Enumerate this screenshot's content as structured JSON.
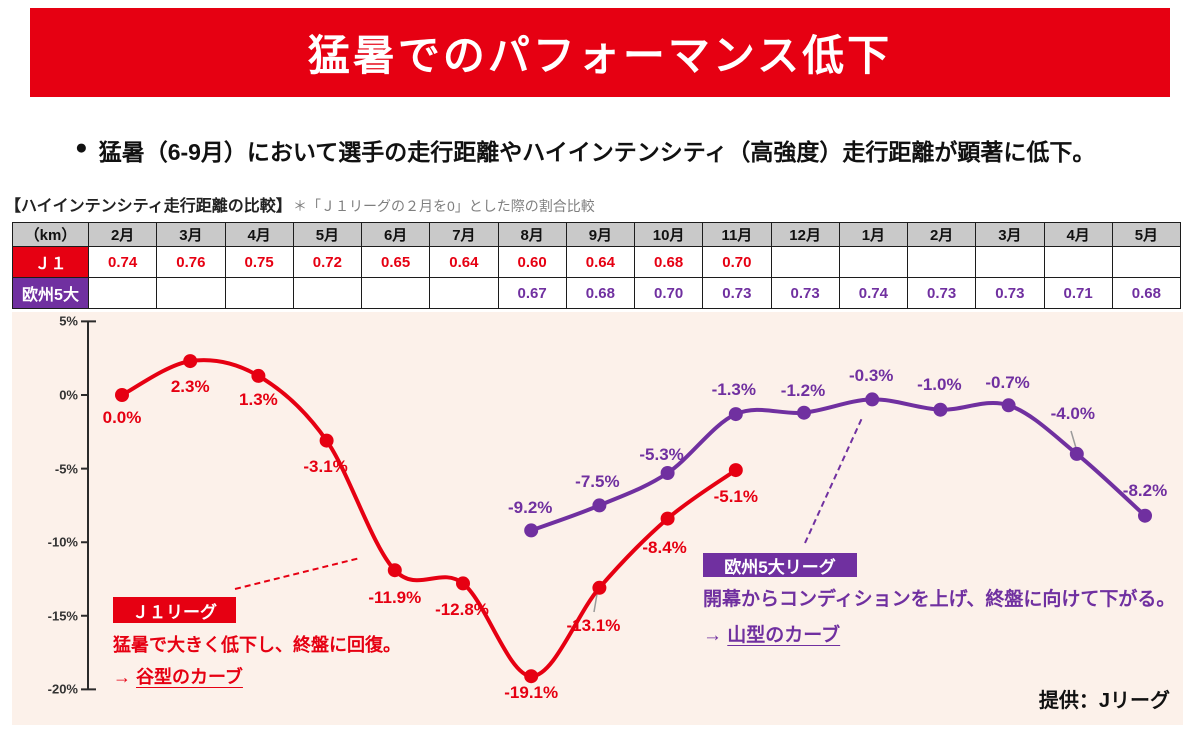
{
  "colors": {
    "red": "#e60012",
    "purple": "#7030a0",
    "chart_bg": "#fcf1ea",
    "table_header_bg": "#c9c9c9",
    "note_gray": "#7f7f7f",
    "axis": "#2b2b2b"
  },
  "header": {
    "title": "猛暑でのパフォーマンス低下"
  },
  "bullet": {
    "icon": "●",
    "text": "猛暑（6-9月）において選手の走行距離やハイインテンシティ（高強度）走行距離が顕著に低下。"
  },
  "section": {
    "label": "【ハイインテンシティ走行距離の比較】",
    "note": "＊「Ｊ１リーグの２月を0」とした際の割合比較"
  },
  "table": {
    "unit_label": "（km）",
    "months": [
      "2月",
      "3月",
      "4月",
      "5月",
      "6月",
      "7月",
      "8月",
      "9月",
      "10月",
      "11月",
      "12月",
      "1月",
      "2月",
      "3月",
      "4月",
      "5月"
    ],
    "rows": [
      {
        "label": "Ｊ１",
        "values": [
          "0.74",
          "0.76",
          "0.75",
          "0.72",
          "0.65",
          "0.64",
          "0.60",
          "0.64",
          "0.68",
          "0.70",
          "",
          "",
          "",
          "",
          "",
          ""
        ]
      },
      {
        "label": "欧州5大",
        "values": [
          "",
          "",
          "",
          "",
          "",
          "",
          "0.67",
          "0.68",
          "0.70",
          "0.73",
          "0.73",
          "0.74",
          "0.73",
          "0.73",
          "0.71",
          "0.68"
        ]
      }
    ]
  },
  "chart_data": {
    "type": "line",
    "title": "ハイインテンシティ走行距離の比較（Ｊ１リーグの２月を0とした際の割合比較）",
    "x": [
      "2月",
      "3月",
      "4月",
      "5月",
      "6月",
      "7月",
      "8月",
      "9月",
      "10月",
      "11月",
      "12月",
      "1月",
      "2月",
      "3月",
      "4月",
      "5月"
    ],
    "ylim": [
      -20,
      5
    ],
    "ytick_values": [
      5,
      0,
      -5,
      -10,
      -15,
      -20
    ],
    "ytick_labels": [
      "5%",
      "0%",
      "-5%",
      "-10%",
      "-15%",
      "-20%"
    ],
    "grid": false,
    "legend": "inline-annotation-boxes",
    "series": [
      {
        "name": "Ｊ１リーグ",
        "color": "#e60012",
        "start_index": 0,
        "values": [
          0.0,
          2.3,
          1.3,
          -3.1,
          -11.9,
          -12.8,
          -19.1,
          -13.1,
          -8.4,
          -5.1
        ],
        "labels": [
          "0.0%",
          "2.3%",
          "1.3%",
          "-3.1%",
          "-11.9%",
          "-12.8%",
          "-19.1%",
          "-13.1%",
          "-8.4%",
          "-5.1%"
        ],
        "label_offsets": [
          [
            0,
            23
          ],
          [
            0,
            26
          ],
          [
            0,
            24
          ],
          [
            -1,
            26
          ],
          [
            0,
            28
          ],
          [
            -1,
            27
          ],
          [
            0,
            17
          ],
          [
            -6,
            38
          ],
          [
            -3,
            29
          ],
          [
            0,
            27
          ]
        ]
      },
      {
        "name": "欧州5大リーグ",
        "color": "#7030a0",
        "start_index": 6,
        "values": [
          -9.2,
          -7.5,
          -5.3,
          -1.3,
          -1.2,
          -0.3,
          -1.0,
          -0.7,
          -4.0,
          -8.2
        ],
        "labels": [
          "-9.2%",
          "-7.5%",
          "-5.3%",
          "-1.3%",
          "-1.2%",
          "-0.3%",
          "-1.0%",
          "-0.7%",
          "-4.0%",
          "-8.2%"
        ],
        "label_offsets": [
          [
            -1,
            -22
          ],
          [
            -2,
            -23
          ],
          [
            -6,
            -18
          ],
          [
            -2,
            -24
          ],
          [
            -1,
            -22
          ],
          [
            -1,
            -23
          ],
          [
            -1,
            -25
          ],
          [
            -1,
            -22
          ],
          [
            -4,
            -40
          ],
          [
            0,
            -25
          ]
        ]
      }
    ]
  },
  "annotations": {
    "j1": {
      "tag": "Ｊ１リーグ",
      "line1": "猛暑で大きく低下し、終盤に回復。",
      "arrow": "→ ",
      "line2": "谷型のカーブ"
    },
    "europe": {
      "tag": "欧州5大リーグ",
      "line1": "開幕からコンディションを上げ、終盤に向けて下がる。",
      "arrow": "→ ",
      "line2": "山型のカーブ"
    }
  },
  "credit": "提供：Jリーグ"
}
